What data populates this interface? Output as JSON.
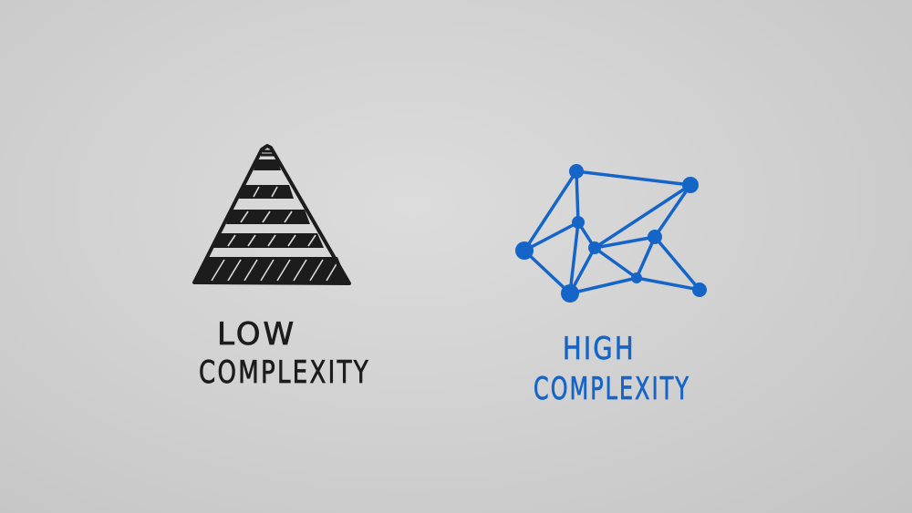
{
  "left_figure": {
    "shape": "striped-triangle",
    "label_line1": "LOW",
    "label_line2": "COMPLEXITY",
    "ink_color": "#1c1c1c"
  },
  "right_figure": {
    "shape": "node-network",
    "label_line1": "HIGH",
    "label_line2": "COMPLEXITY",
    "ink_color": "#1565c8"
  },
  "background_color": "#d6d6d6"
}
